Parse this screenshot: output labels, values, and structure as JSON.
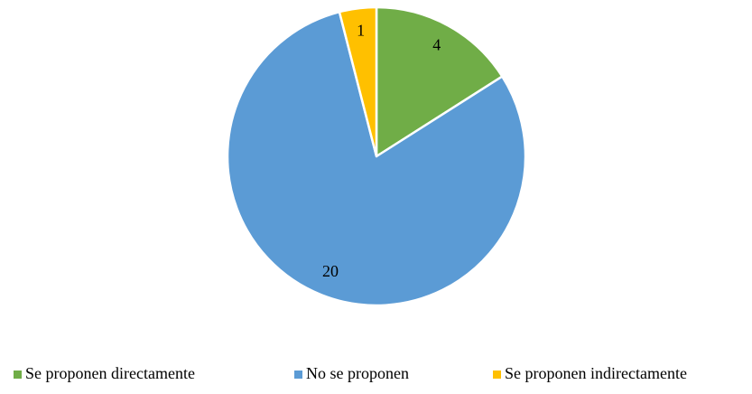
{
  "chart_data": {
    "type": "pie",
    "categories": [
      "Se proponen directamente",
      "No se proponen",
      "Se proponen indirectamente"
    ],
    "values": [
      4,
      20,
      1
    ],
    "colors": [
      "#70ad47",
      "#5b9bd5",
      "#ffc000"
    ],
    "legend": "bottom"
  }
}
